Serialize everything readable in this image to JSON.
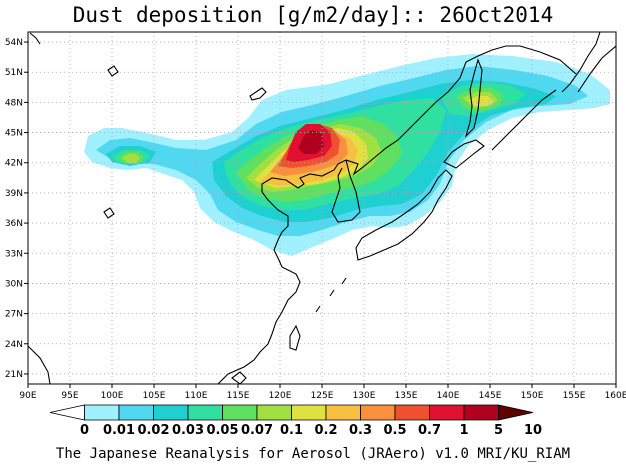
{
  "title": "Dust deposition [g/m2/day]:: 26Oct2014",
  "footer": "The Japanese Reanalysis for Aerosol (JRAero) v1.0 MRI/KU_RIAM",
  "map": {
    "lon_range": [
      90,
      160
    ],
    "lat_range": [
      20,
      55
    ],
    "lon_ticks": [
      "90E",
      "95E",
      "100E",
      "105E",
      "110E",
      "115E",
      "120E",
      "125E",
      "130E",
      "135E",
      "140E",
      "145E",
      "150E",
      "155E",
      "160E"
    ],
    "lat_ticks": [
      "21N",
      "24N",
      "27N",
      "30N",
      "33N",
      "36N",
      "39N",
      "42N",
      "45N",
      "48N",
      "51N",
      "54N"
    ]
  },
  "colorbar": {
    "labels": [
      "0",
      "0.01",
      "0.02",
      "0.03",
      "0.05",
      "0.07",
      "0.1",
      "0.2",
      "0.3",
      "0.5",
      "0.7",
      "1",
      "5",
      "10"
    ],
    "colors": [
      "#ffffff",
      "#a0f0ff",
      "#50d8f0",
      "#20d0d0",
      "#30e0a0",
      "#60e060",
      "#a0e040",
      "#e0e040",
      "#f8c040",
      "#f89040",
      "#f05030",
      "#e01030",
      "#b00020",
      "#600000"
    ]
  },
  "dust_levels": [
    {
      "name": "0.01",
      "color": "#a0f0ff"
    },
    {
      "name": "0.02",
      "color": "#50d8f0"
    },
    {
      "name": "0.03",
      "color": "#20d0d0"
    },
    {
      "name": "0.05",
      "color": "#30e0a0"
    },
    {
      "name": "0.07",
      "color": "#60e060"
    },
    {
      "name": "0.1",
      "color": "#a0e040"
    },
    {
      "name": "0.2",
      "color": "#e0e040"
    },
    {
      "name": "0.3",
      "color": "#f8c040"
    },
    {
      "name": "0.5",
      "color": "#f89040"
    },
    {
      "name": "0.7",
      "color": "#f05030"
    },
    {
      "name": "1",
      "color": "#e01030"
    },
    {
      "name": "5",
      "color": "#b00020"
    }
  ]
}
